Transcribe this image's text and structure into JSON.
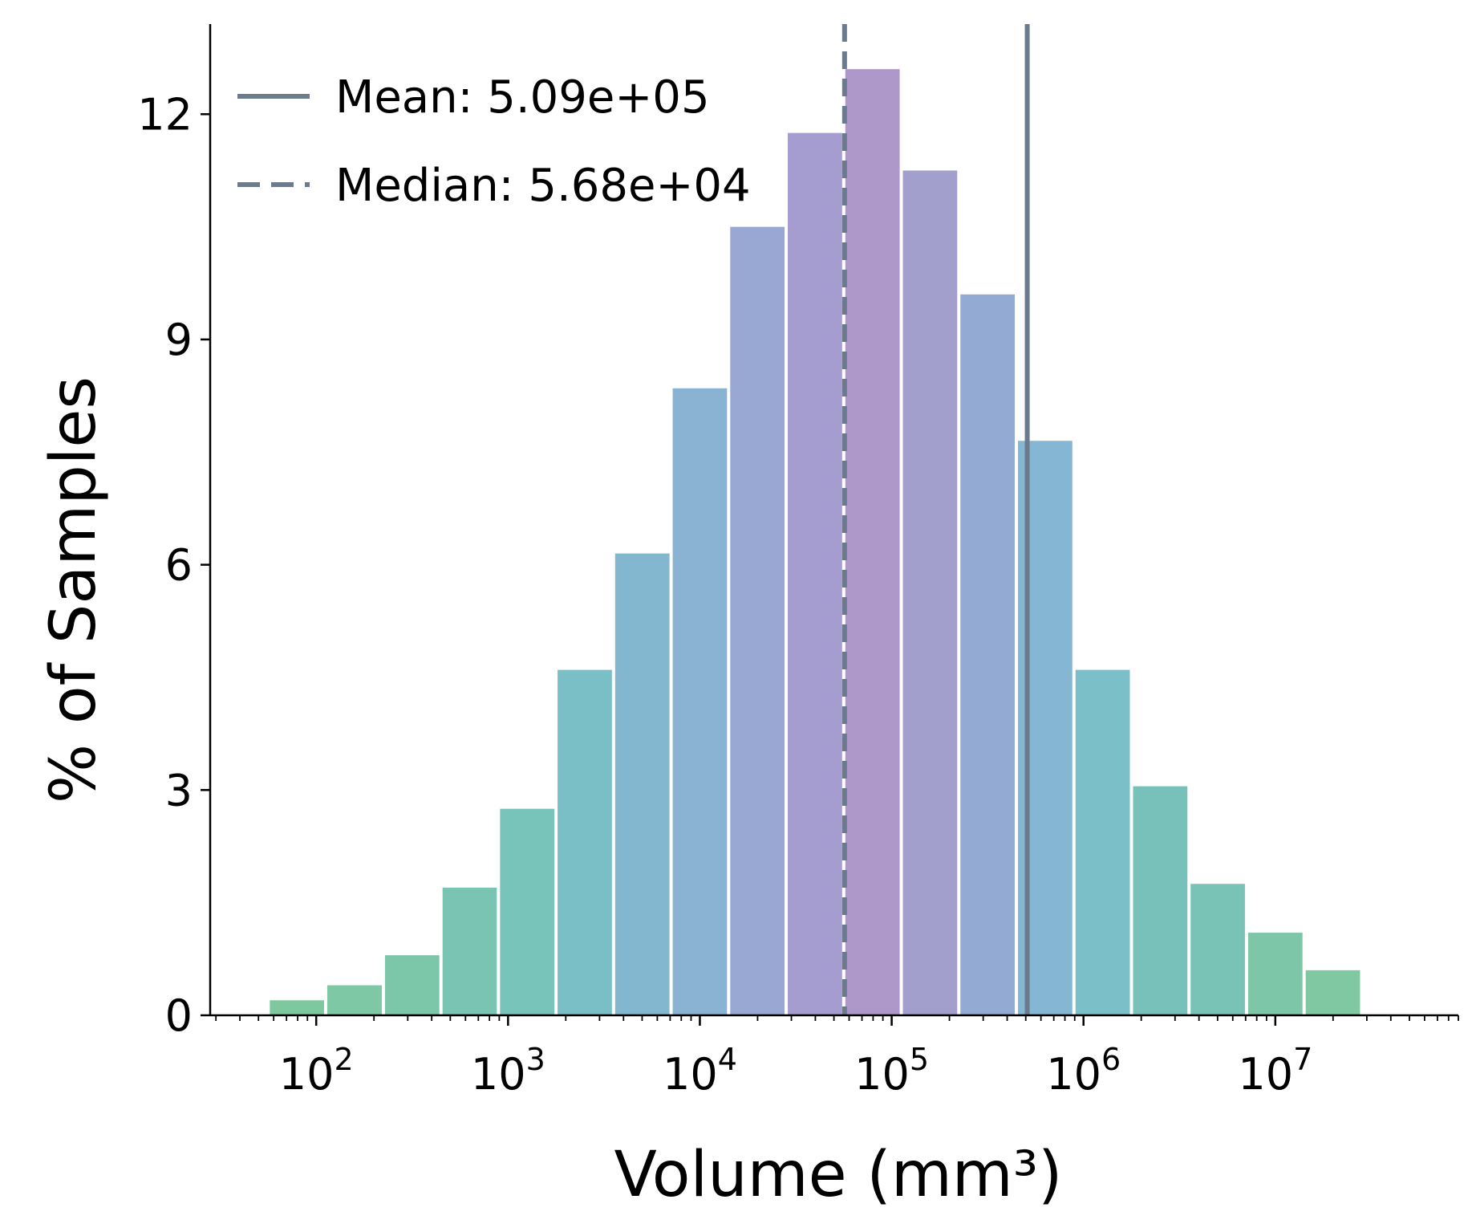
{
  "chart_data": {
    "type": "bar",
    "xlabel": "Volume (mm³)",
    "ylabel": "% of Samples",
    "x_scale": "log",
    "xlim": [
      28,
      90000000
    ],
    "ylim": [
      0,
      13.2
    ],
    "y_ticks": [
      0,
      3,
      6,
      9,
      12
    ],
    "x_major_tick_exponents": [
      2,
      3,
      4,
      5,
      6,
      7
    ],
    "grid": false,
    "legend_position": "top-left",
    "bins": [
      {
        "x0": 56.2,
        "x1": 112,
        "value": 0.2,
        "color": "#7ec8a0"
      },
      {
        "x0": 112,
        "x1": 224,
        "value": 0.4,
        "color": "#7ec8a5"
      },
      {
        "x0": 224,
        "x1": 447,
        "value": 0.8,
        "color": "#7cc6aa"
      },
      {
        "x0": 447,
        "x1": 891,
        "value": 1.7,
        "color": "#79c4b2"
      },
      {
        "x0": 891,
        "x1": 1778,
        "value": 2.75,
        "color": "#78c3ba"
      },
      {
        "x0": 1778,
        "x1": 3548,
        "value": 4.6,
        "color": "#7bbfc6"
      },
      {
        "x0": 3548,
        "x1": 7079,
        "value": 6.15,
        "color": "#82b7cf"
      },
      {
        "x0": 7079,
        "x1": 14125,
        "value": 8.35,
        "color": "#8ab2d3"
      },
      {
        "x0": 14125,
        "x1": 28184,
        "value": 10.5,
        "color": "#98a8d3"
      },
      {
        "x0": 28184,
        "x1": 56234,
        "value": 11.75,
        "color": "#a59ccf"
      },
      {
        "x0": 56234,
        "x1": 112202,
        "value": 12.6,
        "color": "#ad98c9"
      },
      {
        "x0": 112202,
        "x1": 223872,
        "value": 11.25,
        "color": "#a39fcd"
      },
      {
        "x0": 223872,
        "x1": 446684,
        "value": 9.6,
        "color": "#93abd2"
      },
      {
        "x0": 446684,
        "x1": 891251,
        "value": 7.65,
        "color": "#85b6d3"
      },
      {
        "x0": 891251,
        "x1": 1778279,
        "value": 4.6,
        "color": "#7bbfc8"
      },
      {
        "x0": 1778279,
        "x1": 3548134,
        "value": 3.05,
        "color": "#78c1bb"
      },
      {
        "x0": 3548134,
        "x1": 7079458,
        "value": 1.75,
        "color": "#79c3b6"
      },
      {
        "x0": 7079458,
        "x1": 14125375,
        "value": 1.1,
        "color": "#7ec6a8"
      },
      {
        "x0": 14125375,
        "x1": 28183829,
        "value": 0.6,
        "color": "#7fc8a2"
      }
    ],
    "reference_lines": [
      {
        "name": "Mean: 5.09e+05",
        "x": 509000,
        "style": "solid",
        "color": "#6b7a8c"
      },
      {
        "name": "Median: 5.68e+04",
        "x": 56800,
        "style": "dashed",
        "color": "#6b7a8c"
      }
    ]
  }
}
